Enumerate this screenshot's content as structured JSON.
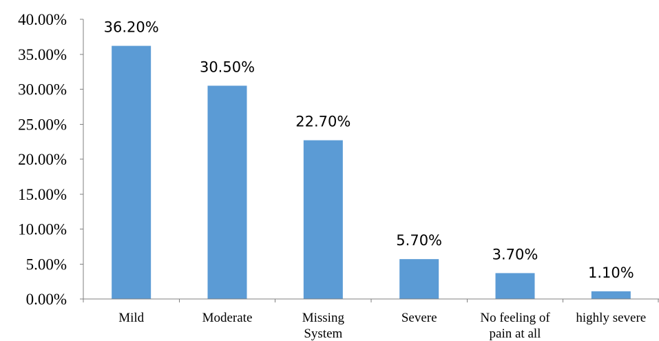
{
  "chart_data": {
    "type": "bar",
    "categories": [
      "Mild",
      "Moderate",
      "Missing System",
      "Severe",
      "No feeling of pain at all",
      "highly severe"
    ],
    "category_lines": [
      [
        "Mild"
      ],
      [
        "Moderate"
      ],
      [
        "Missing",
        "System"
      ],
      [
        "Severe"
      ],
      [
        "No feeling of",
        "pain at all"
      ],
      [
        "highly severe"
      ]
    ],
    "values": [
      36.2,
      30.5,
      22.7,
      5.7,
      3.7,
      1.1
    ],
    "data_labels": [
      "36.20%",
      "30.50%",
      "22.70%",
      "5.70%",
      "3.70%",
      "1.10%"
    ],
    "yticks": [
      "0.00%",
      "5.00%",
      "10.00%",
      "15.00%",
      "20.00%",
      "25.00%",
      "30.00%",
      "35.00%",
      "40.00%"
    ],
    "ylim": [
      0,
      40
    ],
    "ytick_step": 5,
    "grid": false,
    "bar_color": "#5b9bd5",
    "axis_color": "#7f7f7f"
  }
}
